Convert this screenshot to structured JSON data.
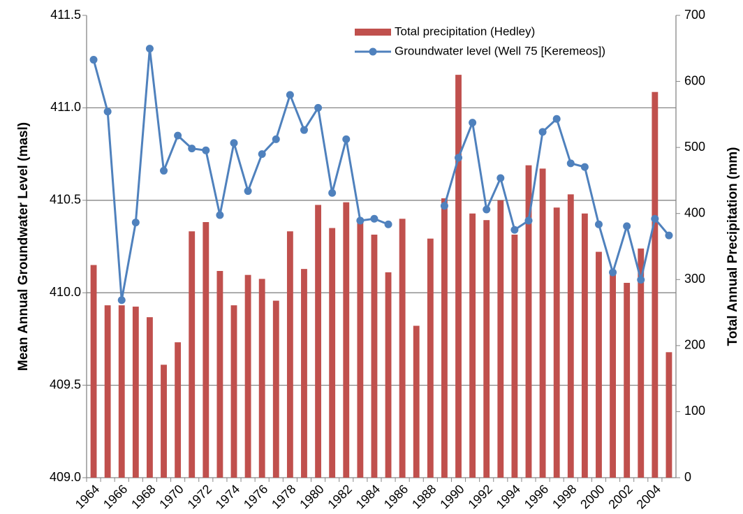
{
  "chart_data": {
    "type": "bar-line",
    "y_label": "Mean Annual Groundwater Level (masl)",
    "y2_label": "Total Annual Precipitation (mm)",
    "categories": [
      "1964",
      null,
      "1966",
      null,
      "1968",
      null,
      "1970",
      null,
      "1972",
      null,
      "1974",
      null,
      "1976",
      null,
      "1978",
      null,
      "1980",
      null,
      "1982",
      null,
      "1984",
      null,
      "1986",
      null,
      "1988",
      null,
      "1990",
      null,
      "1992",
      null,
      "1994",
      null,
      "1996",
      null,
      "1998",
      null,
      "2000",
      null,
      "2002",
      null,
      "2004",
      null
    ],
    "series": [
      {
        "name": "Total precipitation (Hedley)",
        "type": "bar",
        "axis": "y2",
        "color": "#c0504d",
        "values": [
          322,
          261,
          261,
          259,
          243,
          171,
          205,
          373,
          387,
          313,
          261,
          307,
          301,
          268,
          373,
          316,
          413,
          378,
          417,
          392,
          368,
          311,
          392,
          230,
          362,
          423,
          610,
          400,
          390,
          420,
          368,
          473,
          468,
          409,
          429,
          400,
          342,
          313,
          295,
          347,
          584,
          190
        ]
      },
      {
        "name": "Groundwater level (Well 75 [Keremeos])",
        "type": "line",
        "axis": "y",
        "color": "#4f81bd",
        "values": [
          411.26,
          410.98,
          409.96,
          410.38,
          411.32,
          410.66,
          410.85,
          410.78,
          410.77,
          410.42,
          410.81,
          410.55,
          410.75,
          410.83,
          411.07,
          410.88,
          411.0,
          410.54,
          410.83,
          410.39,
          410.4,
          410.37,
          null,
          null,
          null,
          410.47,
          410.73,
          410.92,
          410.45,
          410.62,
          410.34,
          410.39,
          410.87,
          410.94,
          410.7,
          410.68,
          410.37,
          410.11,
          410.36,
          410.07,
          410.4,
          410.31
        ]
      }
    ],
    "ylim": [
      409.0,
      411.5
    ],
    "yticks": [
      {
        "value": 409,
        "label": "409.0"
      },
      409.5,
      {
        "value": 410,
        "label": "410.0"
      },
      410.5,
      {
        "value": 411,
        "label": "411.0"
      },
      411.5
    ],
    "y2lim": [
      0,
      700
    ],
    "y2ticks": [
      0,
      100,
      200,
      300,
      400,
      500,
      600,
      700
    ],
    "grid": true,
    "legend": "top-right"
  }
}
